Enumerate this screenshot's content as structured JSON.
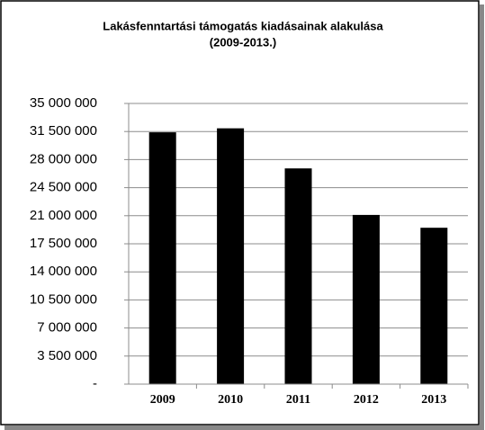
{
  "chart_data": {
    "type": "bar",
    "title": "Lakásfenntartási támogatás kiadásainak alakulása",
    "subtitle": "(2009-2013.)",
    "categories": [
      "2009",
      "2010",
      "2011",
      "2012",
      "2013"
    ],
    "values": [
      31400000,
      31900000,
      26900000,
      21100000,
      19500000
    ],
    "color": "#000000",
    "ylim": [
      0,
      35000000
    ],
    "yticks": [
      {
        "value": 0,
        "label": "-"
      },
      {
        "value": 3500000,
        "label": "3 500 000"
      },
      {
        "value": 7000000,
        "label": "7 000 000"
      },
      {
        "value": 10500000,
        "label": "10 500 000"
      },
      {
        "value": 14000000,
        "label": "14 000 000"
      },
      {
        "value": 17500000,
        "label": "17 500 000"
      },
      {
        "value": 21000000,
        "label": "21 000 000"
      },
      {
        "value": 24500000,
        "label": "24 500 000"
      },
      {
        "value": 28000000,
        "label": "28 000 000"
      },
      {
        "value": 31500000,
        "label": "31 500 000"
      },
      {
        "value": 35000000,
        "label": "35 000 000"
      }
    ],
    "grid": true
  }
}
